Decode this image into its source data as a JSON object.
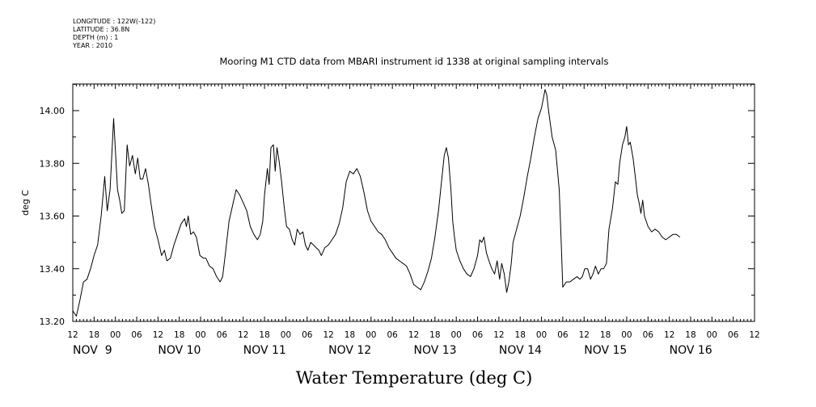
{
  "metadata": [
    "LONGITUDE : 122W(-122)",
    "LATITUDE : 36.8N",
    "DEPTH (m) : 1",
    "YEAR : 2010"
  ],
  "chart_data": {
    "type": "line",
    "title": "Mooring M1 CTD data from MBARI instrument id 1338 at original sampling intervals",
    "xlabel": "Water Temperature (deg C)",
    "ylabel": "deg C",
    "x_unit": "hours since 2010-11-08 12:00",
    "xlim": [
      0,
      192
    ],
    "ylim": [
      13.2,
      14.1
    ],
    "y_ticks": [
      13.2,
      13.4,
      13.6,
      13.8,
      14.0
    ],
    "y_tick_labels": [
      "13.20",
      "13.40",
      "13.60",
      "13.80",
      "14.00"
    ],
    "x_hour_labels": [
      "12",
      "18",
      "00",
      "06",
      "12",
      "18",
      "00",
      "06",
      "12",
      "18",
      "00",
      "06",
      "12",
      "18",
      "00",
      "06",
      "12",
      "18",
      "00",
      "06",
      "12",
      "18",
      "00",
      "06",
      "12",
      "18",
      "00",
      "06",
      "12",
      "18",
      "00",
      "06",
      "12"
    ],
    "x_day_labels": [
      {
        "text": "NOV  9",
        "hour": 0
      },
      {
        "text": "NOV 10",
        "hour": 24
      },
      {
        "text": "NOV 11",
        "hour": 48
      },
      {
        "text": "NOV 12",
        "hour": 72
      },
      {
        "text": "NOV 13",
        "hour": 96
      },
      {
        "text": "NOV 14",
        "hour": 120
      },
      {
        "text": "NOV 15",
        "hour": 144
      },
      {
        "text": "NOV 16",
        "hour": 168
      }
    ],
    "grid": false,
    "series": [
      {
        "points": [
          [
            0,
            13.24
          ],
          [
            1,
            13.22
          ],
          [
            2,
            13.28
          ],
          [
            3,
            13.35
          ],
          [
            4,
            13.36
          ],
          [
            5,
            13.4
          ],
          [
            6,
            13.45
          ],
          [
            7,
            13.49
          ],
          [
            8,
            13.6
          ],
          [
            9,
            13.75
          ],
          [
            9.7,
            13.62
          ],
          [
            10.5,
            13.7
          ],
          [
            11.5,
            13.97
          ],
          [
            12,
            13.85
          ],
          [
            12.6,
            13.7
          ],
          [
            13.2,
            13.66
          ],
          [
            13.8,
            13.61
          ],
          [
            14.5,
            13.62
          ],
          [
            15.3,
            13.87
          ],
          [
            16,
            13.79
          ],
          [
            16.8,
            13.83
          ],
          [
            17.6,
            13.76
          ],
          [
            18.3,
            13.82
          ],
          [
            19,
            13.74
          ],
          [
            19.7,
            13.74
          ],
          [
            20.5,
            13.78
          ],
          [
            21.3,
            13.72
          ],
          [
            22,
            13.65
          ],
          [
            23,
            13.56
          ],
          [
            24,
            13.51
          ],
          [
            25,
            13.45
          ],
          [
            25.8,
            13.47
          ],
          [
            26.5,
            13.43
          ],
          [
            27.5,
            13.44
          ],
          [
            28.5,
            13.49
          ],
          [
            29.5,
            13.53
          ],
          [
            30.5,
            13.57
          ],
          [
            31.5,
            13.59
          ],
          [
            32,
            13.56
          ],
          [
            32.5,
            13.6
          ],
          [
            33.2,
            13.53
          ],
          [
            34,
            13.54
          ],
          [
            34.8,
            13.52
          ],
          [
            35.8,
            13.45
          ],
          [
            36.8,
            13.44
          ],
          [
            37.5,
            13.44
          ],
          [
            38.5,
            13.41
          ],
          [
            39.5,
            13.4
          ],
          [
            40.5,
            13.37
          ],
          [
            41.5,
            13.35
          ],
          [
            42.2,
            13.37
          ],
          [
            43,
            13.46
          ],
          [
            44,
            13.58
          ],
          [
            45,
            13.64
          ],
          [
            46,
            13.7
          ],
          [
            47,
            13.68
          ],
          [
            48,
            13.65
          ],
          [
            49,
            13.62
          ],
          [
            50,
            13.56
          ],
          [
            51,
            13.53
          ],
          [
            52,
            13.51
          ],
          [
            52.8,
            13.53
          ],
          [
            53.5,
            13.58
          ],
          [
            54,
            13.68
          ],
          [
            54.8,
            13.78
          ],
          [
            55.3,
            13.72
          ],
          [
            55.8,
            13.86
          ],
          [
            56.5,
            13.87
          ],
          [
            57,
            13.77
          ],
          [
            57.5,
            13.86
          ],
          [
            58.2,
            13.8
          ],
          [
            58.8,
            13.73
          ],
          [
            59.5,
            13.64
          ],
          [
            60.2,
            13.56
          ],
          [
            61,
            13.55
          ],
          [
            61.8,
            13.51
          ],
          [
            62.5,
            13.49
          ],
          [
            63.2,
            13.55
          ],
          [
            64,
            13.53
          ],
          [
            64.8,
            13.54
          ],
          [
            65.5,
            13.49
          ],
          [
            66.2,
            13.47
          ],
          [
            67,
            13.5
          ],
          [
            67.8,
            13.49
          ],
          [
            68.5,
            13.48
          ],
          [
            69.3,
            13.47
          ],
          [
            70,
            13.45
          ],
          [
            71,
            13.48
          ],
          [
            72,
            13.49
          ],
          [
            73,
            13.51
          ],
          [
            74,
            13.53
          ],
          [
            75,
            13.57
          ],
          [
            76,
            13.63
          ],
          [
            77,
            13.73
          ],
          [
            78,
            13.77
          ],
          [
            79,
            13.76
          ],
          [
            80,
            13.78
          ],
          [
            81,
            13.75
          ],
          [
            82,
            13.69
          ],
          [
            83,
            13.62
          ],
          [
            84,
            13.58
          ],
          [
            85,
            13.56
          ],
          [
            86,
            13.54
          ],
          [
            87,
            13.53
          ],
          [
            88,
            13.51
          ],
          [
            89,
            13.48
          ],
          [
            90,
            13.46
          ],
          [
            91,
            13.44
          ],
          [
            92,
            13.43
          ],
          [
            93,
            13.42
          ],
          [
            94,
            13.41
          ],
          [
            95,
            13.38
          ],
          [
            96,
            13.34
          ],
          [
            97,
            13.33
          ],
          [
            98,
            13.32
          ],
          [
            99,
            13.35
          ],
          [
            100,
            13.39
          ],
          [
            101,
            13.44
          ],
          [
            102,
            13.52
          ],
          [
            103,
            13.62
          ],
          [
            104,
            13.75
          ],
          [
            104.6,
            13.83
          ],
          [
            105.2,
            13.86
          ],
          [
            105.8,
            13.82
          ],
          [
            106.5,
            13.7
          ],
          [
            107,
            13.58
          ],
          [
            107.5,
            13.52
          ],
          [
            108,
            13.47
          ],
          [
            109,
            13.43
          ],
          [
            110,
            13.4
          ],
          [
            111,
            13.38
          ],
          [
            112,
            13.37
          ],
          [
            113,
            13.4
          ],
          [
            114,
            13.45
          ],
          [
            114.6,
            13.51
          ],
          [
            115.2,
            13.5
          ],
          [
            115.8,
            13.52
          ],
          [
            116.5,
            13.46
          ],
          [
            117.2,
            13.43
          ],
          [
            118,
            13.4
          ],
          [
            118.8,
            13.38
          ],
          [
            119.5,
            13.43
          ],
          [
            120.2,
            13.36
          ],
          [
            120.8,
            13.42
          ],
          [
            121.5,
            13.38
          ],
          [
            122.2,
            13.31
          ],
          [
            122.8,
            13.35
          ],
          [
            123.5,
            13.42
          ],
          [
            124,
            13.5
          ],
          [
            125,
            13.55
          ],
          [
            126,
            13.6
          ],
          [
            127,
            13.67
          ],
          [
            128,
            13.75
          ],
          [
            129,
            13.82
          ],
          [
            130,
            13.9
          ],
          [
            131,
            13.97
          ],
          [
            132,
            14.01
          ],
          [
            133,
            14.08
          ],
          [
            133.5,
            14.06
          ],
          [
            134,
            14.0
          ],
          [
            135,
            13.9
          ],
          [
            136,
            13.85
          ],
          [
            137,
            13.7
          ],
          [
            137.5,
            13.52
          ],
          [
            138,
            13.33
          ],
          [
            139,
            13.35
          ],
          [
            140,
            13.35
          ],
          [
            141,
            13.36
          ],
          [
            142,
            13.37
          ],
          [
            142.8,
            13.36
          ],
          [
            143.5,
            13.37
          ],
          [
            144.2,
            13.4
          ],
          [
            145,
            13.4
          ],
          [
            145.8,
            13.36
          ],
          [
            146.5,
            13.38
          ],
          [
            147.2,
            13.41
          ],
          [
            148,
            13.38
          ],
          [
            148.8,
            13.4
          ],
          [
            149.5,
            13.4
          ],
          [
            150.3,
            13.42
          ],
          [
            151,
            13.55
          ],
          [
            152,
            13.63
          ],
          [
            152.8,
            13.73
          ],
          [
            153.5,
            13.72
          ],
          [
            154,
            13.8
          ],
          [
            154.8,
            13.87
          ],
          [
            155.5,
            13.9
          ],
          [
            156,
            13.94
          ],
          [
            156.5,
            13.87
          ],
          [
            157,
            13.88
          ],
          [
            157.8,
            13.82
          ],
          [
            158.5,
            13.74
          ],
          [
            159,
            13.68
          ],
          [
            159.5,
            13.65
          ],
          [
            160,
            13.61
          ],
          [
            160.5,
            13.66
          ],
          [
            161,
            13.6
          ],
          [
            162,
            13.56
          ],
          [
            163,
            13.54
          ],
          [
            164,
            13.55
          ],
          [
            165,
            13.54
          ],
          [
            166,
            13.52
          ],
          [
            167,
            13.51
          ],
          [
            168,
            13.52
          ],
          [
            169,
            13.53
          ],
          [
            170,
            13.53
          ],
          [
            171,
            13.52
          ]
        ]
      }
    ]
  }
}
